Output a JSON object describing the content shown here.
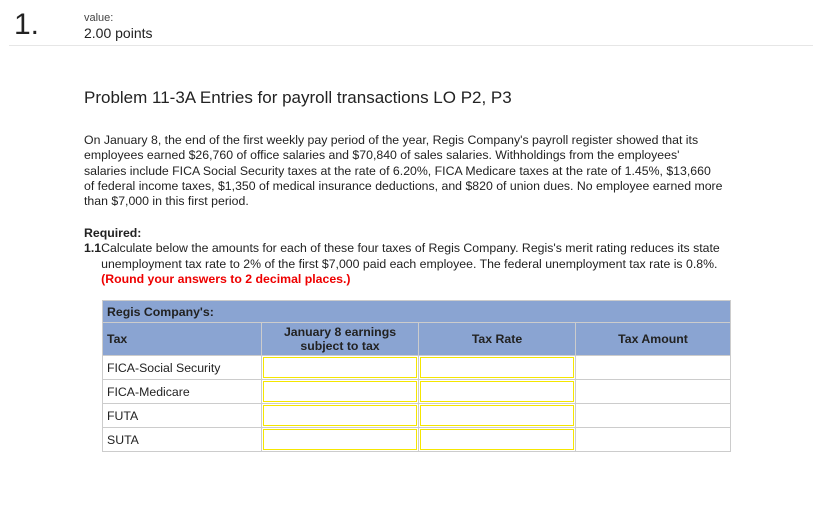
{
  "question": {
    "number": "1.",
    "value_label": "value:",
    "value": "2.00 points"
  },
  "title": "Problem 11-3A Entries for payroll transactions LO P2, P3",
  "paragraph": "On January 8, the end of the first weekly pay period of the year, Regis Company's payroll register showed that its employees earned $26,760 of office salaries and $70,840 of sales salaries. Withholdings from the employees' salaries include FICA Social Security taxes at the rate of 6.20%, FICA Medicare taxes at the rate of 1.45%, $13,660 of federal income taxes, $1,350 of medical insurance deductions, and $820 of union dues. No employee earned more than $7,000 in this first period.",
  "required": {
    "label": "Required:",
    "number": "1.1",
    "text": "Calculate below the amounts for each of these four taxes of Regis Company. Regis's merit rating reduces its state unemployment tax rate to 2% of the first $7,000 paid each employee. The federal unemployment tax rate is 0.8%.",
    "note": "(Round your answers to 2 decimal places.)"
  },
  "table": {
    "caption": "Regis Company's:",
    "headers": [
      "Tax",
      "January 8 earnings subject to tax",
      "Tax Rate",
      "Tax Amount"
    ],
    "rows": [
      {
        "tax": "FICA-Social Security",
        "earnings": "",
        "rate": "",
        "amount": ""
      },
      {
        "tax": "FICA-Medicare",
        "earnings": "",
        "rate": "",
        "amount": ""
      },
      {
        "tax": "FUTA",
        "earnings": "",
        "rate": "",
        "amount": ""
      },
      {
        "tax": "SUTA",
        "earnings": "",
        "rate": "",
        "amount": ""
      }
    ]
  },
  "colors": {
    "header": "#8aa4d2",
    "input_border": "#f5e600",
    "note": "#ee0000"
  }
}
